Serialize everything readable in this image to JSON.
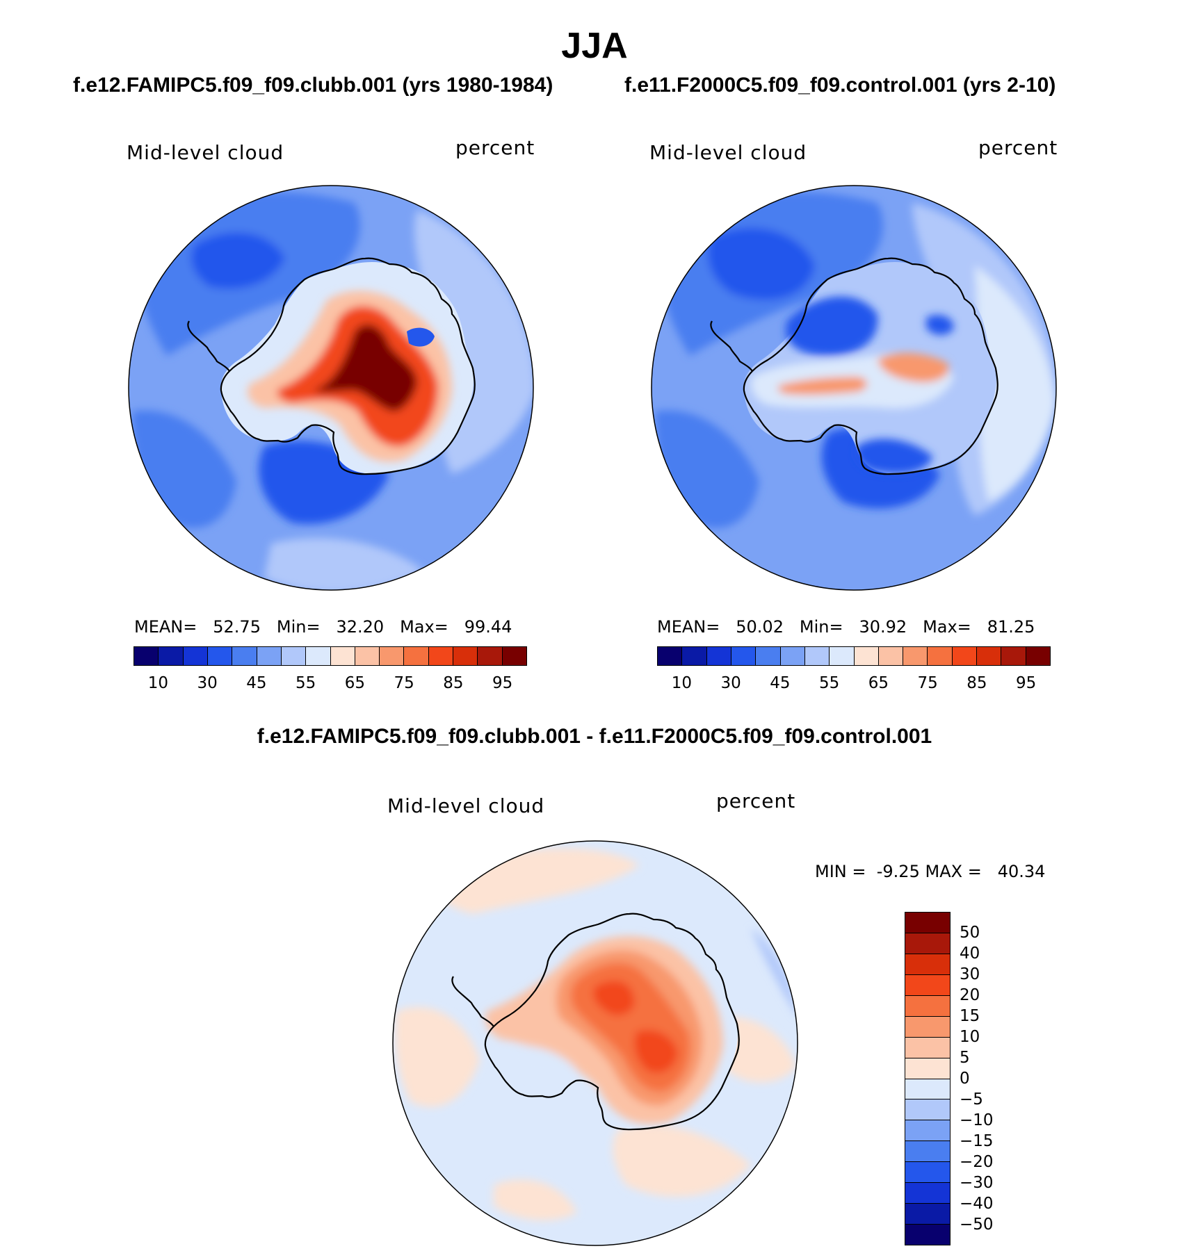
{
  "figure": {
    "season": "JJA",
    "case_a_title": "f.e12.FAMIPC5.f09_f09.clubb.001 (yrs 1980-1984)",
    "case_b_title": "f.e11.F2000C5.f09_f09.control.001 (yrs 2-10)",
    "diff_title": "f.e12.FAMIPC5.f09_f09.clubb.001 - f.e11.F2000C5.f09_f09.control.001"
  },
  "colors": {
    "abs_scale": [
      "#08006e",
      "#0a1aa6",
      "#1434d6",
      "#2457ec",
      "#4a7ef0",
      "#7ba2f5",
      "#b1c8fa",
      "#dce9fc",
      "#fde3d3",
      "#fbc2a6",
      "#f8986d",
      "#f5713f",
      "#f2471a",
      "#d82f0a",
      "#a8180a",
      "#780000"
    ],
    "diff_scale": [
      "#08006e",
      "#0a1aa6",
      "#1434d6",
      "#2457ec",
      "#4a7ef0",
      "#7ba2f5",
      "#b1c8fa",
      "#dce9fc",
      "#fde3d3",
      "#fbc2a6",
      "#f8986d",
      "#f5713f",
      "#f2471a",
      "#d82f0a",
      "#a8180a",
      "#780000"
    ],
    "coastline": "#000000"
  },
  "chart_data": [
    {
      "type": "heatmap",
      "projection": "south-polar-stereographic",
      "variable": "Mid-level cloud",
      "units": "percent",
      "stats": {
        "mean_label": "MEAN=",
        "mean": "52.75",
        "min_label": "Min=",
        "min": "32.20",
        "max_label": "Max=",
        "max": "99.44"
      },
      "colorbar_ticks": [
        "10",
        "30",
        "45",
        "55",
        "65",
        "75",
        "85",
        "95"
      ],
      "colorbar_levels": [
        5,
        10,
        20,
        30,
        40,
        45,
        50,
        55,
        60,
        65,
        70,
        75,
        80,
        85,
        90,
        95
      ],
      "regions": [
        {
          "name": "ocean-background",
          "level_index": 5
        },
        {
          "name": "pacific-sector",
          "level_index": 4
        },
        {
          "name": "weddell-sea",
          "level_index": 3
        },
        {
          "name": "east-indian-sector",
          "level_index": 6
        },
        {
          "name": "ross-sea",
          "level_index": 3
        },
        {
          "name": "peninsula-west",
          "level_index": 7
        },
        {
          "name": "interior-max",
          "level_index": 15
        },
        {
          "name": "interior-high",
          "level_index": 12
        },
        {
          "name": "interior-mid",
          "level_index": 9
        }
      ]
    },
    {
      "type": "heatmap",
      "projection": "south-polar-stereographic",
      "variable": "Mid-level cloud",
      "units": "percent",
      "stats": {
        "mean_label": "MEAN=",
        "mean": "50.02",
        "min_label": "Min=",
        "min": "30.92",
        "max_label": "Max=",
        "max": "81.25"
      },
      "colorbar_ticks": [
        "10",
        "30",
        "45",
        "55",
        "65",
        "75",
        "85",
        "95"
      ],
      "colorbar_levels": [
        5,
        10,
        20,
        30,
        40,
        45,
        50,
        55,
        60,
        65,
        70,
        75,
        80,
        85,
        90,
        95
      ],
      "regions": [
        {
          "name": "ocean-background",
          "level_index": 5
        },
        {
          "name": "pacific-sector",
          "level_index": 3
        },
        {
          "name": "weddell-sea",
          "level_index": 3
        },
        {
          "name": "east-indian-sector",
          "level_index": 7
        },
        {
          "name": "ross-sea",
          "level_index": 3
        },
        {
          "name": "interior-low",
          "level_index": 4
        },
        {
          "name": "interior-band",
          "level_index": 10
        },
        {
          "name": "east-antarctica",
          "level_index": 7
        }
      ]
    },
    {
      "type": "heatmap",
      "projection": "south-polar-stereographic",
      "variable": "Mid-level cloud",
      "units": "percent",
      "stats": {
        "min_label": "MIN =",
        "min": "-9.25",
        "max_label": "MAX =",
        "max": "40.34"
      },
      "colorbar_ticks": [
        "50",
        "40",
        "30",
        "20",
        "15",
        "10",
        "5",
        "0",
        "−5",
        "−10",
        "−15",
        "−20",
        "−30",
        "−40",
        "−50"
      ],
      "colorbar_levels": [
        -60,
        -50,
        -40,
        -30,
        -20,
        -15,
        -10,
        -5,
        0,
        5,
        10,
        15,
        20,
        30,
        40,
        50
      ],
      "regions": [
        {
          "name": "ocean-background",
          "level_index": 7
        },
        {
          "name": "positive-patches",
          "level_index": 8
        },
        {
          "name": "interior-strong",
          "level_index": 13
        },
        {
          "name": "interior-moderate",
          "level_index": 11
        },
        {
          "name": "interior-weak",
          "level_index": 10
        }
      ]
    }
  ]
}
